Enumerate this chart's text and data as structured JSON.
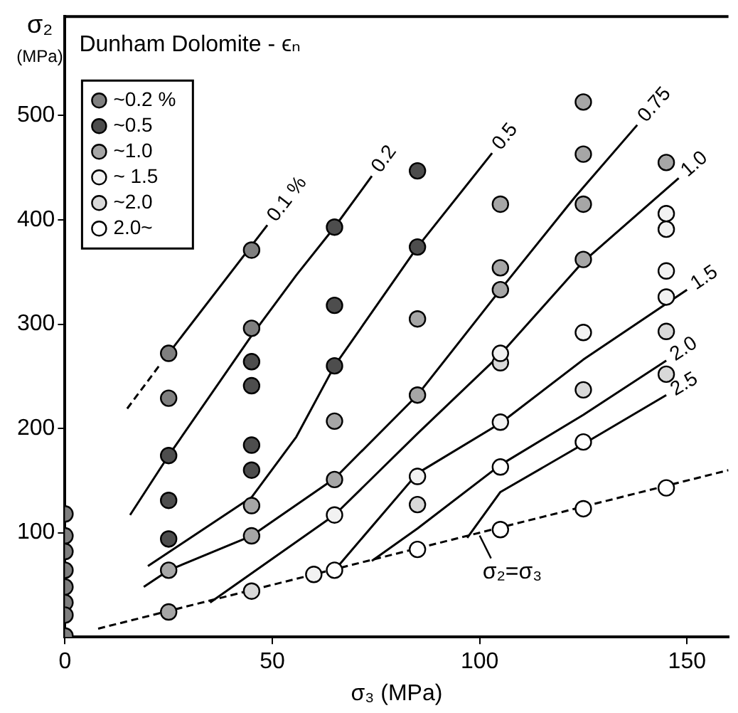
{
  "chart_data": {
    "type": "scatter",
    "title": "Dunham Dolomite - ϵₙ",
    "xlabel": "σ₃ (MPa)",
    "ylabel": "σ₂ (MPa)",
    "xlim": [
      0,
      160
    ],
    "ylim": [
      0,
      595
    ],
    "xticks": [
      0,
      50,
      100,
      150
    ],
    "yticks": [
      100,
      200,
      300,
      400,
      500
    ],
    "grid": false,
    "legend": "top left",
    "marker": "circle",
    "annotations": [
      {
        "text": "σ₂=σ₃",
        "x": 100,
        "y": 100
      }
    ],
    "series": [
      {
        "name": "~0.2 %",
        "color": "#7f7f7f",
        "x": [
          0,
          0,
          0,
          0,
          0,
          0,
          0,
          0,
          25,
          25,
          45,
          45
        ],
        "values": [
          118,
          97,
          82,
          64,
          48,
          33,
          21,
          1,
          272,
          229,
          371,
          296
        ]
      },
      {
        "name": "~0.5",
        "color": "#4d4d4d",
        "x": [
          25,
          25,
          25,
          45,
          45,
          45,
          45,
          65,
          65,
          65,
          85,
          85
        ],
        "values": [
          174,
          131,
          94,
          264,
          241,
          184,
          160,
          393,
          318,
          260,
          447,
          374
        ]
      },
      {
        "name": "~1.0",
        "color": "#a6a6a6",
        "x": [
          25,
          25,
          45,
          45,
          65,
          65,
          85,
          85,
          105,
          105,
          105,
          125,
          125,
          125,
          125,
          145
        ],
        "values": [
          64,
          24,
          126,
          97,
          207,
          151,
          305,
          232,
          415,
          354,
          333,
          513,
          463,
          415,
          362,
          455
        ]
      },
      {
        "name": "~ 1.5",
        "color": "#f2f2f2",
        "x": [
          60,
          65,
          85,
          105,
          105,
          125,
          145,
          145,
          145,
          145
        ],
        "values": [
          60,
          117,
          154,
          272,
          206,
          292,
          406,
          391,
          351,
          326
        ]
      },
      {
        "name": "~2.0",
        "color": "#d9d9d9",
        "x": [
          45,
          85,
          105,
          125,
          145,
          145
        ],
        "values": [
          44,
          127,
          263,
          237,
          293,
          252
        ]
      },
      {
        "name": "2.0~",
        "color": "#ffffff",
        "x": [
          65,
          85,
          105,
          105,
          125,
          125,
          145
        ],
        "values": [
          64,
          84,
          163,
          103,
          187,
          123,
          143
        ]
      },
      {
        "name": "0.1 %",
        "type": "line",
        "color": "#000000",
        "marker": "none",
        "line_style": "solid",
        "x": [
          25,
          48.8
        ],
        "values": [
          272,
          395
        ]
      },
      {
        "type": "line",
        "color": "#000000",
        "marker": "none",
        "line_style": "dashed",
        "x": [
          15,
          22.7
        ],
        "values": [
          219,
          260
        ]
      },
      {
        "name": "0.2",
        "type": "line",
        "color": "#000000",
        "marker": "none",
        "line_style": "solid",
        "x": [
          15.7,
          25,
          45,
          55.8,
          65,
          74
        ],
        "values": [
          117,
          174,
          289,
          347,
          393,
          442
        ]
      },
      {
        "name": "0.5",
        "type": "line",
        "color": "#000000",
        "marker": "none",
        "line_style": "solid",
        "x": [
          20,
          45,
          55.8,
          65,
          85,
          103
        ],
        "values": [
          68,
          134,
          192,
          260,
          374,
          464
        ]
      },
      {
        "name": "0.75",
        "type": "line",
        "color": "#000000",
        "marker": "none",
        "line_style": "solid",
        "x": [
          19,
          25,
          45,
          65,
          85,
          105,
          123,
          138
        ],
        "values": [
          48,
          64,
          97,
          152,
          232,
          333,
          422,
          491
        ]
      },
      {
        "name": "1.0",
        "type": "line",
        "color": "#000000",
        "marker": "none",
        "line_style": "solid",
        "x": [
          35,
          50,
          65,
          85,
          105,
          125,
          148
        ],
        "values": [
          33,
          75,
          117,
          195,
          271,
          360,
          440
        ]
      },
      {
        "name": "1.5",
        "type": "line",
        "color": "#000000",
        "marker": "none",
        "line_style": "solid",
        "x": [
          65,
          85,
          105,
          125,
          150
        ],
        "values": [
          64,
          157,
          205,
          266,
          333
        ]
      },
      {
        "name": "2.0",
        "type": "line",
        "color": "#000000",
        "marker": "none",
        "line_style": "solid",
        "x": [
          74,
          85,
          105,
          125,
          145
        ],
        "values": [
          73,
          104,
          165,
          213,
          265
        ]
      },
      {
        "name": "2.5",
        "type": "line",
        "color": "#000000",
        "marker": "none",
        "line_style": "solid",
        "x": [
          97,
          105,
          125,
          145
        ],
        "values": [
          95,
          139,
          185,
          232
        ]
      },
      {
        "type": "line",
        "color": "#000000",
        "marker": "none",
        "line_style": "dashed",
        "x": [
          8,
          160
        ],
        "values": [
          8,
          160
        ]
      }
    ]
  }
}
